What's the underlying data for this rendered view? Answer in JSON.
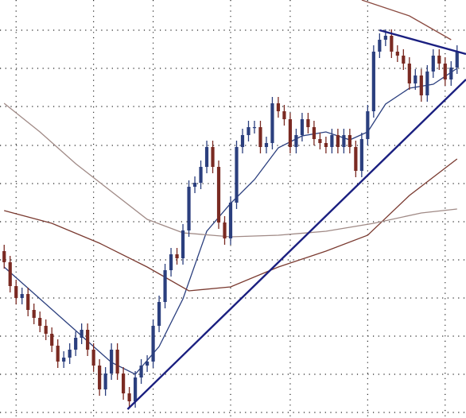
{
  "chart_data": {
    "type": "candlestick",
    "up_color": "#2b3f7e",
    "down_color": "#7a2a22",
    "xlim": [
      -0.7,
      77.5
    ],
    "ylim": [
      0,
      526
    ],
    "xticks": [
      2,
      15,
      25,
      38,
      48,
      61,
      74
    ],
    "yticks": [
      488,
      440,
      392,
      343,
      295,
      247,
      199,
      151,
      103,
      55,
      7
    ],
    "grid": true,
    "open": [
      210,
      196,
      166,
      151,
      156,
      136,
      126,
      116,
      106,
      91,
      71,
      76,
      86,
      101,
      111,
      86,
      66,
      36,
      56,
      86,
      56,
      31,
      21,
      51,
      66,
      71,
      116,
      146,
      186,
      206,
      201,
      236,
      291,
      296,
      316,
      341,
      316,
      246,
      226,
      271,
      341,
      356,
      366,
      366,
      341,
      346,
      396,
      386,
      376,
      341,
      356,
      376,
      366,
      351,
      346,
      341,
      356,
      341,
      356,
      341,
      311,
      351,
      386,
      461,
      476,
      481,
      461,
      456,
      446,
      421,
      431,
      406,
      436,
      456,
      446,
      426,
      441
    ],
    "high": [
      218,
      204,
      174,
      164,
      164,
      144,
      134,
      124,
      114,
      99,
      84,
      94,
      109,
      119,
      119,
      94,
      74,
      64,
      94,
      94,
      64,
      39,
      59,
      74,
      79,
      124,
      154,
      194,
      214,
      214,
      244,
      299,
      304,
      324,
      349,
      349,
      324,
      254,
      279,
      349,
      364,
      374,
      374,
      374,
      354,
      404,
      404,
      394,
      384,
      364,
      384,
      384,
      374,
      359,
      354,
      364,
      364,
      364,
      364,
      349,
      359,
      394,
      469,
      484,
      489,
      489,
      469,
      464,
      454,
      439,
      439,
      444,
      464,
      464,
      454,
      449,
      469
    ],
    "low": [
      188,
      158,
      143,
      143,
      128,
      118,
      108,
      98,
      83,
      63,
      63,
      68,
      78,
      93,
      78,
      58,
      28,
      28,
      48,
      48,
      23,
      13,
      13,
      43,
      58,
      63,
      108,
      138,
      178,
      193,
      193,
      228,
      283,
      288,
      308,
      308,
      238,
      218,
      218,
      263,
      333,
      348,
      358,
      333,
      333,
      338,
      378,
      368,
      333,
      333,
      348,
      358,
      343,
      338,
      333,
      333,
      333,
      333,
      333,
      303,
      303,
      343,
      378,
      453,
      468,
      453,
      448,
      438,
      413,
      413,
      398,
      398,
      428,
      438,
      418,
      418,
      433
    ],
    "close": [
      196,
      166,
      151,
      156,
      136,
      126,
      116,
      106,
      91,
      71,
      76,
      86,
      101,
      111,
      86,
      66,
      36,
      56,
      86,
      56,
      31,
      21,
      51,
      66,
      71,
      116,
      146,
      186,
      206,
      201,
      236,
      291,
      296,
      316,
      341,
      316,
      246,
      226,
      271,
      341,
      356,
      366,
      366,
      341,
      346,
      396,
      386,
      376,
      341,
      356,
      376,
      366,
      351,
      346,
      341,
      356,
      341,
      356,
      341,
      311,
      351,
      386,
      461,
      476,
      481,
      461,
      456,
      446,
      421,
      431,
      406,
      436,
      456,
      446,
      426,
      441,
      461
    ],
    "lines": [
      {
        "color": "#2b3f7e",
        "x": [
          0,
          6,
          12,
          18,
          22,
          26,
          30,
          34,
          38,
          42,
          46,
          50,
          54,
          58,
          61,
          64,
          68,
          72,
          76
        ],
        "values": [
          190,
          150,
          110,
          70,
          55,
          90,
          150,
          235,
          270,
          300,
          340,
          355,
          360,
          350,
          360,
          395,
          415,
          420,
          440
        ]
      },
      {
        "color": "#7a3a30",
        "x": [
          0,
          8,
          16,
          24,
          31,
          38,
          46,
          54,
          61,
          68,
          76
        ],
        "values": [
          261,
          245,
          220,
          190,
          160,
          165,
          190,
          210,
          230,
          280,
          326
        ]
      },
      {
        "color": "#a08a86",
        "x": [
          0,
          6,
          12,
          18,
          24,
          30,
          38,
          46,
          54,
          62,
          70,
          76
        ],
        "values": [
          396,
          360,
          320,
          285,
          250,
          233,
          228,
          230,
          235,
          245,
          258,
          263
        ]
      },
      {
        "color": "#8a4a40",
        "x": [
          60,
          68,
          75
        ],
        "values": [
          526,
          506,
          476
        ]
      }
    ],
    "trendlines": [
      {
        "color": "#1a1f80",
        "x": [
          20.7,
          77.5
        ],
        "values": [
          11,
          426
        ]
      },
      {
        "color": "#1a1f80",
        "x": [
          63,
          77.5
        ],
        "values": [
          488,
          458
        ]
      }
    ]
  }
}
